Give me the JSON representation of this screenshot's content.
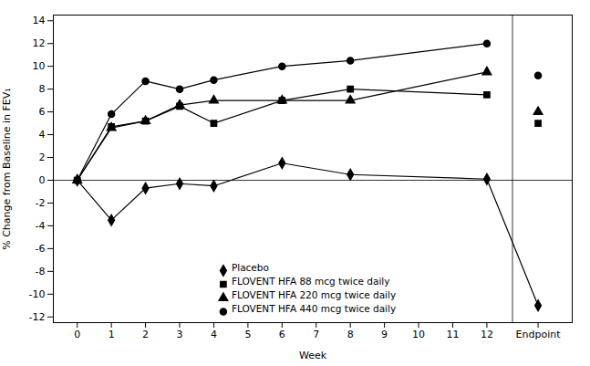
{
  "chart_data": {
    "type": "line",
    "x": [
      0,
      1,
      2,
      3,
      4,
      6,
      8,
      12,
      13.5
    ],
    "series": [
      {
        "name": "Placebo",
        "color": "#000000",
        "marker": "diamond",
        "values": [
          0,
          -3.5,
          -0.7,
          -0.3,
          -0.5,
          1.5,
          0.5,
          0.1,
          -11.0
        ]
      },
      {
        "name": "FLOVENT HFA 88 mcg twice daily",
        "color": "#000000",
        "marker": "square",
        "values": [
          0,
          4.7,
          5.2,
          6.5,
          5.0,
          7.0,
          8.0,
          7.5,
          null
        ]
      },
      {
        "name": "FLOVENT HFA 88 mcg twice daily",
        "type": "scatter",
        "color": "#000000",
        "marker": "square",
        "values": [
          null,
          null,
          null,
          null,
          null,
          null,
          null,
          null,
          5.0
        ]
      },
      {
        "name": "FLOVENT HFA 220 mcg twice daily",
        "color": "#000000",
        "marker": "triangle",
        "values": [
          0,
          4.6,
          5.2,
          6.6,
          7.0,
          7.0,
          7.0,
          9.5,
          null
        ]
      },
      {
        "name": "FLOVENT HFA 220 mcg twice daily",
        "type": "scatter",
        "color": "#000000",
        "marker": "triangle",
        "values": [
          null,
          null,
          null,
          null,
          null,
          null,
          null,
          null,
          6.0
        ]
      },
      {
        "name": "FLOVENT HFA 440 mcg twice daily",
        "color": "#000000",
        "marker": "circle",
        "values": [
          0,
          5.8,
          8.7,
          8.0,
          8.8,
          10.0,
          10.5,
          12.0,
          null
        ]
      },
      {
        "name": "FLOVENT HFA 440 mcg twice daily",
        "type": "scatter",
        "color": "#000000",
        "marker": "circle",
        "values": [
          null,
          null,
          null,
          null,
          null,
          null,
          null,
          null,
          9.2
        ]
      }
    ],
    "xlabel": "Week",
    "ylabel": "% Change from Baseline in FEV₁",
    "xlim": [
      -0.7,
      14.5
    ],
    "xticks": [
      0,
      1,
      2,
      3,
      4,
      5,
      6,
      7,
      8,
      9,
      10,
      11,
      12,
      {
        "value": 13.5,
        "label": "Endpoint"
      }
    ],
    "ylim": [
      -12.5,
      14.5
    ],
    "yticks": [
      -12,
      -10,
      -8,
      -6,
      -4,
      -2,
      0,
      2,
      4,
      6,
      8,
      10,
      12,
      14
    ],
    "grid": false,
    "legend": "lower center"
  }
}
